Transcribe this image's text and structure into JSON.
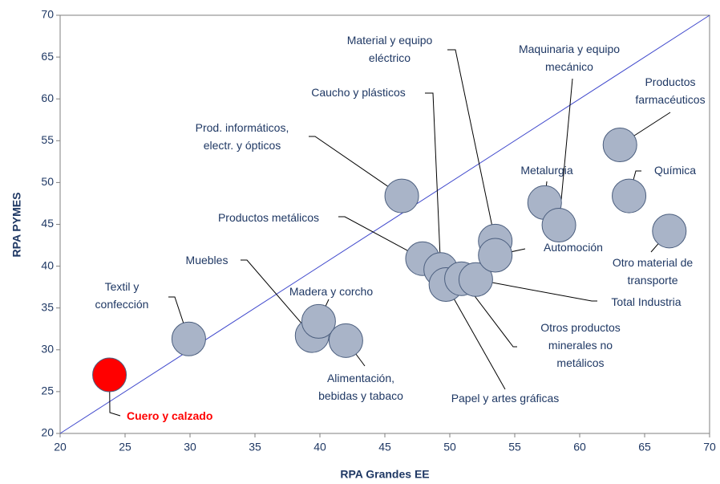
{
  "chart_data": {
    "type": "scatter",
    "xlabel": "RPA Grandes EE",
    "ylabel": "RPA PYMES",
    "xlim": [
      20,
      70
    ],
    "ylim": [
      20,
      70
    ],
    "xticks": [
      20,
      25,
      30,
      35,
      40,
      45,
      50,
      55,
      60,
      65,
      70
    ],
    "yticks": [
      20,
      25,
      30,
      35,
      40,
      45,
      50,
      55,
      60,
      65,
      70
    ],
    "diagonal": {
      "x": [
        20,
        70
      ],
      "y": [
        20,
        70
      ],
      "color": "#3f48cc"
    },
    "labels": [
      [
        "Cuero y calzado"
      ],
      [
        "Textil y",
        "confección"
      ],
      [
        "Muebles"
      ],
      [
        "Madera y corcho"
      ],
      [
        "Alimentación,",
        "bebidas y tabaco"
      ],
      [
        "Prod. informáticos,",
        "electr. y ópticos"
      ],
      [
        "Productos metálicos"
      ],
      [
        "Caucho y plásticos"
      ],
      [
        "Papel y artes gráficas"
      ],
      [
        "Otros productos",
        "minerales no",
        "metálicos"
      ],
      [
        "Total Industria"
      ],
      [
        "Material y equipo",
        "eléctrico"
      ],
      [
        "Automoción"
      ],
      [
        "Metalurgia"
      ],
      [
        "Maquinaria y equipo",
        "mecánico"
      ],
      [
        "Productos",
        "farmacéuticos"
      ],
      [
        "Química"
      ],
      [
        "Otro material de",
        "transporte"
      ]
    ],
    "x": [
      23.8,
      29.9,
      39.4,
      39.9,
      42.0,
      46.3,
      47.9,
      49.3,
      49.7,
      50.9,
      52.0,
      53.5,
      53.5,
      57.3,
      58.4,
      63.1,
      63.8,
      66.9
    ],
    "y": [
      27.0,
      31.3,
      31.7,
      33.4,
      31.1,
      48.4,
      40.9,
      39.6,
      37.8,
      38.5,
      38.4,
      43.0,
      41.3,
      47.6,
      44.9,
      54.5,
      48.4,
      44.2
    ],
    "colors": [
      "#ff0000",
      "#a9b4c8",
      "#a9b4c8",
      "#a9b4c8",
      "#a9b4c8",
      "#a9b4c8",
      "#a9b4c8",
      "#a9b4c8",
      "#a9b4c8",
      "#a9b4c8",
      "#a9b4c8",
      "#a9b4c8",
      "#a9b4c8",
      "#a9b4c8",
      "#a9b4c8",
      "#a9b4c8",
      "#a9b4c8",
      "#a9b4c8"
    ],
    "label_colors": [
      "#ff0000",
      "#1f3864",
      "#1f3864",
      "#1f3864",
      "#1f3864",
      "#1f3864",
      "#1f3864",
      "#1f3864",
      "#1f3864",
      "#1f3864",
      "#1f3864",
      "#1f3864",
      "#1f3864",
      "#1f3864",
      "#1f3864",
      "#1f3864",
      "#1f3864",
      "#1f3864"
    ]
  }
}
